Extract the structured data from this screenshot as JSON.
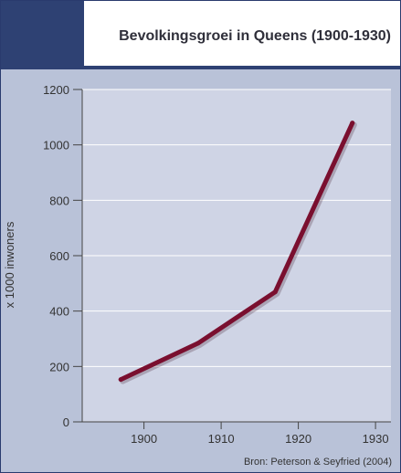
{
  "colors": {
    "header_block": "#2e4173",
    "background": "#b9c2d8",
    "plot_area": "#cfd4e5",
    "line": "#7a0f2f",
    "grid": "#ffffff"
  },
  "source_note": "Bron: Peterson & Seyfried (2004)",
  "chart_data": {
    "type": "line",
    "title": "Bevolkingsgroei in Queens (1900-1930)",
    "xlabel": "",
    "ylabel": "x 1000 inwoners",
    "x": [
      1897,
      1907,
      1917,
      1927
    ],
    "series": [
      {
        "values": [
          153,
          284,
          469,
          1079
        ]
      }
    ],
    "xlim": [
      1892,
      1932
    ],
    "ylim": [
      0,
      1200
    ],
    "xticks": [
      "1900",
      "1910",
      "1920",
      "1930"
    ],
    "yticks": [
      "0",
      "200",
      "400",
      "600",
      "800",
      "1000",
      "1200"
    ],
    "grid": true,
    "legend": "none"
  }
}
